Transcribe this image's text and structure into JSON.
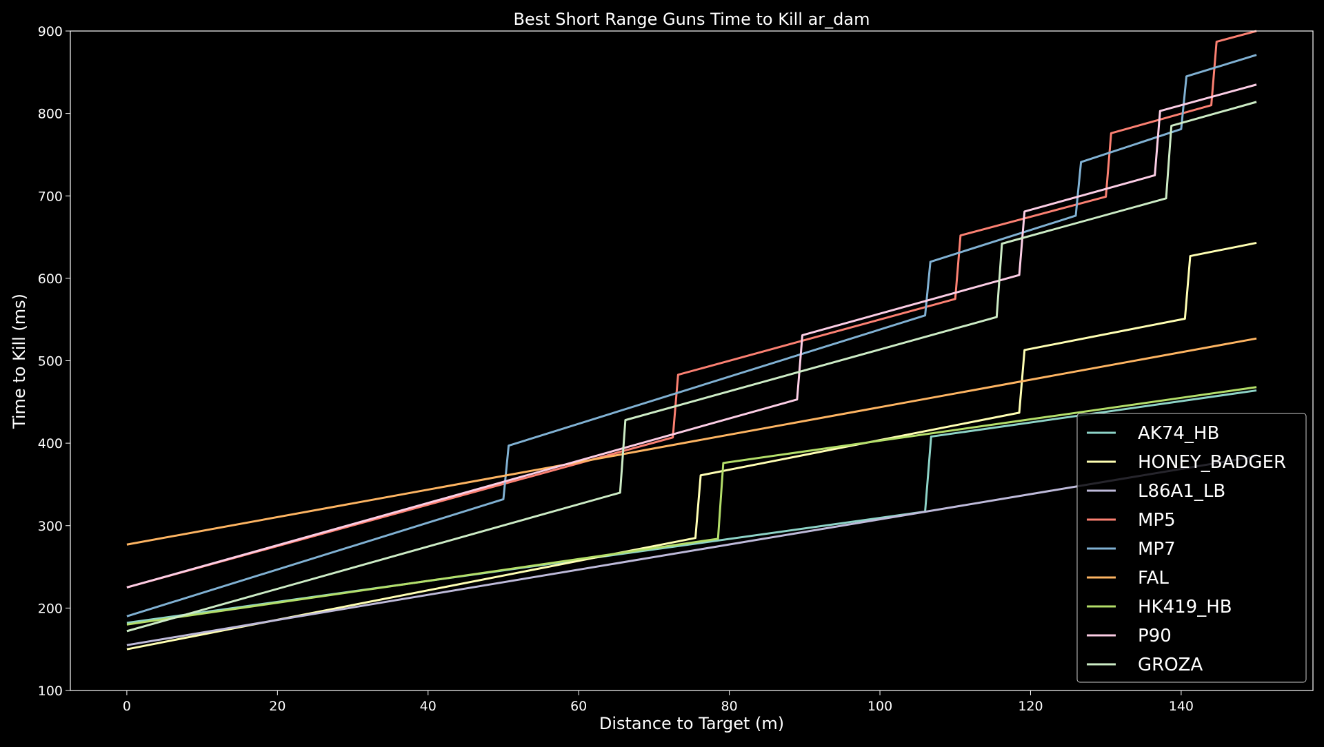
{
  "chart_data": {
    "type": "line",
    "title": "Best Short Range Guns Time to Kill ar_dam",
    "xlabel": "Distance to Target (m)",
    "ylabel": "Time to Kill (ms)",
    "xlim": [
      -7.5,
      157.5
    ],
    "ylim": [
      100,
      900
    ],
    "xticks": [
      0,
      20,
      40,
      60,
      80,
      100,
      120,
      140
    ],
    "yticks": [
      100,
      200,
      300,
      400,
      500,
      600,
      700,
      800,
      900
    ],
    "grid": false,
    "legend_position": "lower-right",
    "background": "#000000",
    "series": [
      {
        "name": "AK74_HB",
        "color": "#8dd3c7",
        "points": [
          [
            0,
            182
          ],
          [
            106,
            317
          ],
          [
            106.8,
            408
          ],
          [
            150,
            464
          ]
        ]
      },
      {
        "name": "HONEY_BADGER",
        "color": "#ffffb3",
        "points": [
          [
            0,
            150
          ],
          [
            75.5,
            285
          ],
          [
            76.2,
            361
          ],
          [
            118.5,
            437
          ],
          [
            119.2,
            513
          ],
          [
            140.5,
            551
          ],
          [
            141.2,
            627
          ],
          [
            150,
            643
          ]
        ]
      },
      {
        "name": "L86A1_LB",
        "color": "#bebada",
        "points": [
          [
            0,
            155
          ],
          [
            150,
            384
          ]
        ]
      },
      {
        "name": "MP5",
        "color": "#fb8072",
        "points": [
          [
            0,
            225
          ],
          [
            72.5,
            407
          ],
          [
            73.2,
            483
          ],
          [
            110,
            575
          ],
          [
            110.7,
            652
          ],
          [
            130,
            699
          ],
          [
            130.7,
            776
          ],
          [
            144,
            810
          ],
          [
            144.7,
            887
          ],
          [
            150,
            900
          ]
        ]
      },
      {
        "name": "MP7",
        "color": "#80b1d3",
        "points": [
          [
            0,
            190
          ],
          [
            50,
            332
          ],
          [
            50.7,
            397
          ],
          [
            106,
            555
          ],
          [
            106.7,
            620
          ],
          [
            126,
            676
          ],
          [
            126.7,
            741
          ],
          [
            140,
            781
          ],
          [
            140.7,
            845
          ],
          [
            150,
            871
          ]
        ]
      },
      {
        "name": "FAL",
        "color": "#fdb462",
        "points": [
          [
            0,
            277
          ],
          [
            150,
            527
          ]
        ]
      },
      {
        "name": "HK419_HB",
        "color": "#b3de69",
        "points": [
          [
            0,
            180
          ],
          [
            78.5,
            284
          ],
          [
            79.2,
            376
          ],
          [
            150,
            468
          ]
        ]
      },
      {
        "name": "P90",
        "color": "#fccde5",
        "points": [
          [
            0,
            225
          ],
          [
            89,
            453
          ],
          [
            89.7,
            531
          ],
          [
            118.5,
            604
          ],
          [
            119.2,
            681
          ],
          [
            136.5,
            725
          ],
          [
            137.2,
            803
          ],
          [
            150,
            835
          ]
        ]
      },
      {
        "name": "GROZA",
        "color": "#ccebc5",
        "points": [
          [
            0,
            172
          ],
          [
            65.5,
            340
          ],
          [
            66.2,
            428
          ],
          [
            115.5,
            553
          ],
          [
            116.2,
            642
          ],
          [
            138,
            697
          ],
          [
            138.7,
            785
          ],
          [
            150,
            814
          ]
        ]
      }
    ]
  }
}
